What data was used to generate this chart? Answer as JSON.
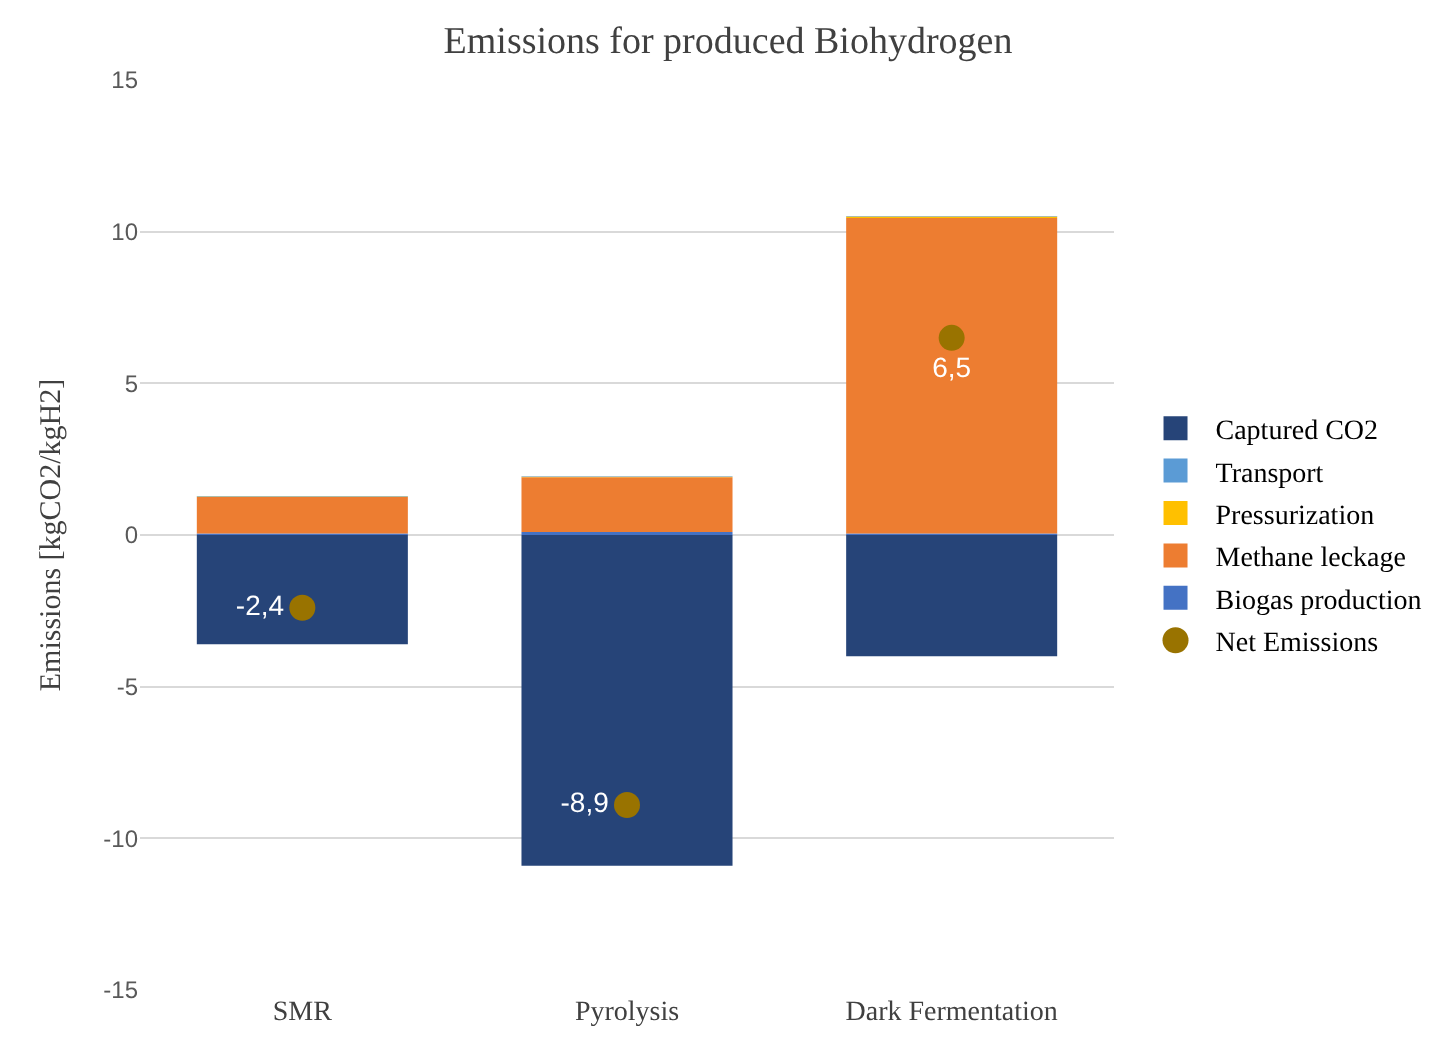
{
  "chart_data": {
    "type": "bar",
    "title": "Emissions for produced Biohydrogen",
    "ylabel": "Emissions [kgCO2/kgH2]",
    "categories": [
      "SMR",
      "Pyrolysis",
      "Dark Fermentation"
    ],
    "stacked": true,
    "ylim": [
      -15,
      15
    ],
    "yticks": [
      -15,
      -10,
      -5,
      0,
      5,
      10,
      15
    ],
    "grid": "y",
    "legend": "right",
    "series": [
      {
        "name": "Biogas production",
        "color": "#4472c4",
        "values": [
          0.05,
          0.1,
          0.05
        ]
      },
      {
        "name": "Methane leckage",
        "color": "#ed7d31",
        "values": [
          1.2,
          1.8,
          10.4
        ]
      },
      {
        "name": "Pressurization",
        "color": "#ffc000",
        "values": [
          0.02,
          0.02,
          0.05
        ]
      },
      {
        "name": "Transport",
        "color": "#5b9bd5",
        "values": [
          0.02,
          0.02,
          0.02
        ]
      },
      {
        "name": "Captured CO2",
        "color": "#264478",
        "values": [
          -3.6,
          -10.9,
          -4.0
        ]
      },
      {
        "name": "Net Emissions",
        "type": "scatter",
        "marker": "circle",
        "color": "#997300",
        "values": [
          -2.4,
          -8.9,
          6.5
        ],
        "value_labels": [
          "-2,4",
          "-8,9",
          "6,5"
        ]
      }
    ]
  }
}
